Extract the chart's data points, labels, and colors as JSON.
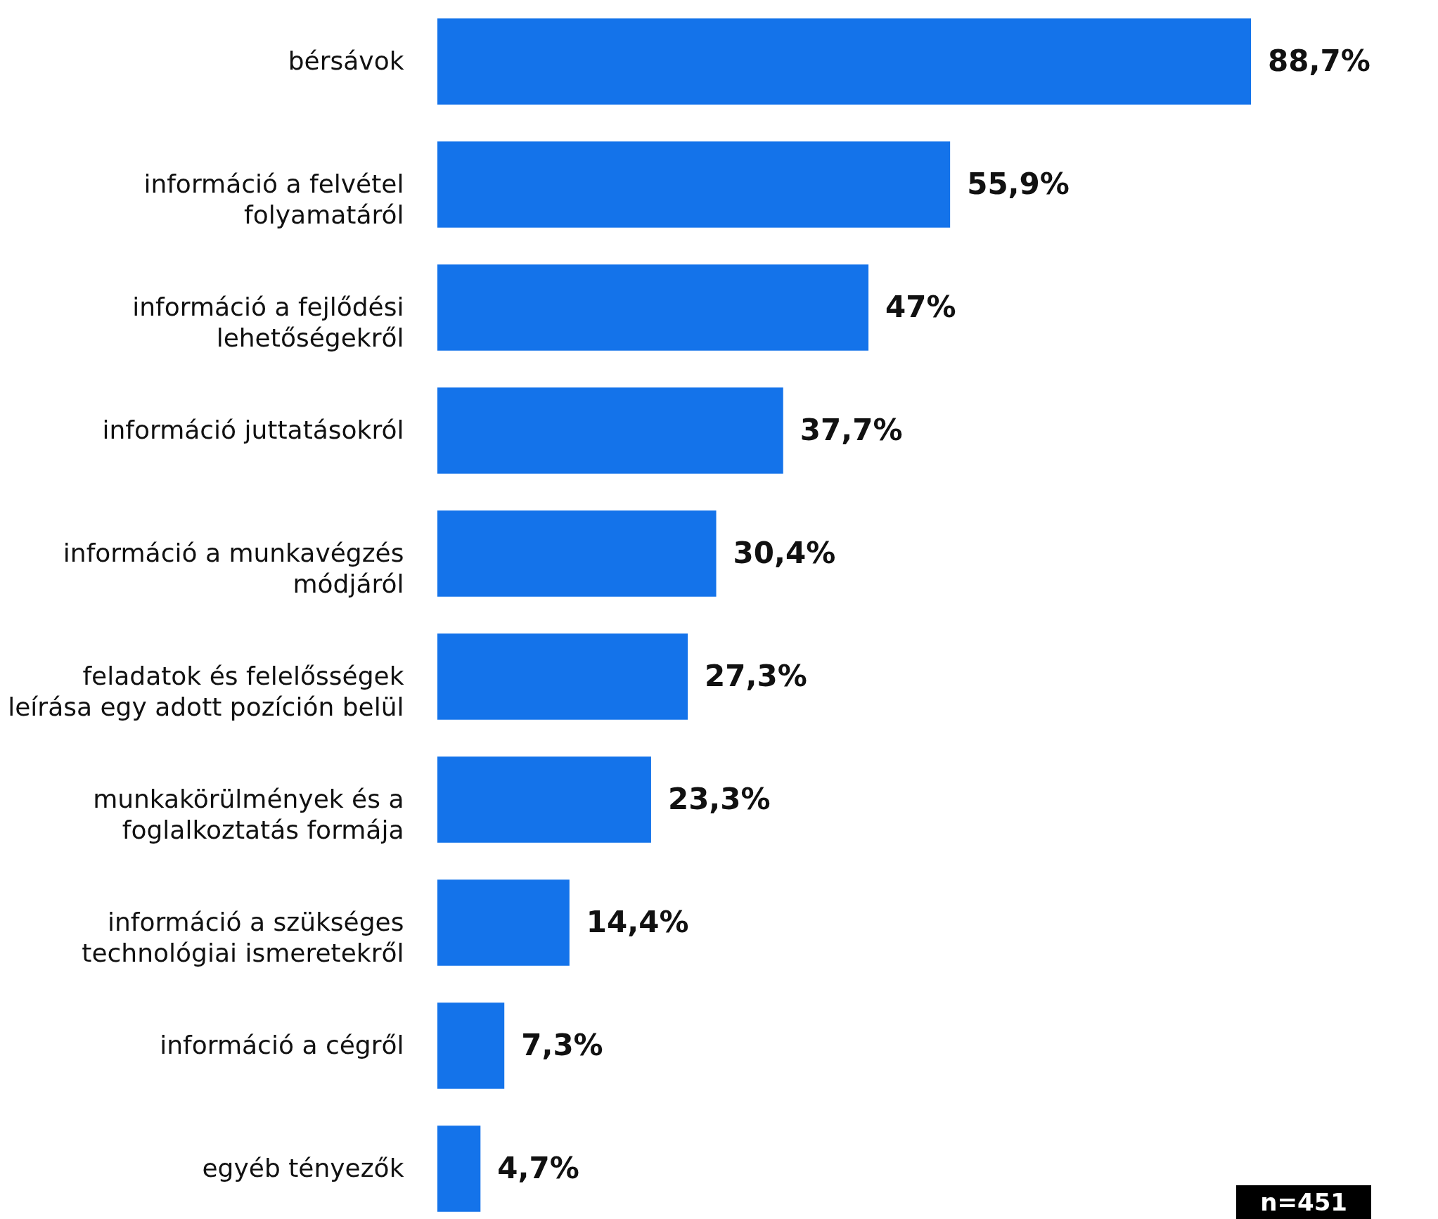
{
  "chart_data": {
    "type": "bar",
    "orientation": "horizontal",
    "categories": [
      "bérsávok",
      "információ a felvétel folyamatáról",
      "információ a fejlődési lehetőségekről",
      "információ juttatásokról",
      "információ a munkavégzés módjáról",
      "feladatok és felelősségek leírása egy adott pozíción belül",
      "munkakörülmények és a foglalkoztatás formája",
      "információ a szükséges technológiai ismeretekről",
      "információ a cégről",
      "egyéb tényezők"
    ],
    "values": [
      88.7,
      55.9,
      47,
      37.7,
      30.4,
      27.3,
      23.3,
      14.4,
      7.3,
      4.7
    ],
    "value_labels": [
      "88,7%",
      "55,9%",
      "47%",
      "37,7%",
      "30,4%",
      "27,3%",
      "23,3%",
      "14,4%",
      "7,3%",
      "4,7%"
    ],
    "tick_labels": "y",
    "color": "#1473ea",
    "annotations": [
      "n=451"
    ]
  }
}
